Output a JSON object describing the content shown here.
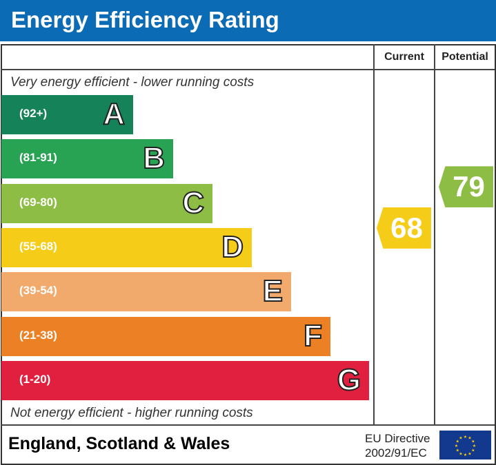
{
  "title": "Energy Efficiency Rating",
  "columns": {
    "current": "Current",
    "potential": "Potential"
  },
  "top_note": "Very energy efficient - lower running costs",
  "bottom_note": "Not energy efficient - higher running costs",
  "footer": {
    "region": "England, Scotland & Wales",
    "directive_line1": "EU Directive",
    "directive_line2": "2002/91/EC"
  },
  "chart_data": {
    "type": "bar",
    "bands": [
      {
        "letter": "A",
        "range": "(92+)",
        "color": "#15825a"
      },
      {
        "letter": "B",
        "range": "(81-91)",
        "color": "#28a354"
      },
      {
        "letter": "C",
        "range": "(69-80)",
        "color": "#8dbd45"
      },
      {
        "letter": "D",
        "range": "(55-68)",
        "color": "#f5cc18"
      },
      {
        "letter": "E",
        "range": "(39-54)",
        "color": "#f2aa6c"
      },
      {
        "letter": "F",
        "range": "(21-38)",
        "color": "#eb8025"
      },
      {
        "letter": "G",
        "range": "(1-20)",
        "color": "#e11f3e"
      }
    ],
    "current": {
      "value": 68,
      "label": "68",
      "band": "D",
      "color": "#f5cc18"
    },
    "potential": {
      "value": 79,
      "label": "79",
      "band": "C",
      "color": "#8dbd45"
    }
  }
}
